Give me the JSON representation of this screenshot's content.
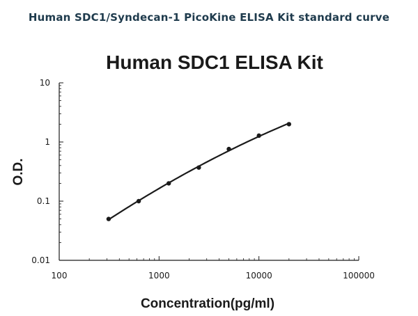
{
  "header": {
    "title": "Human SDC1/Syndecan-1 PicoKine ELISA Kit standard curve"
  },
  "chart_data": {
    "type": "scatter",
    "title": "Human SDC1 ELISA Kit",
    "xlabel": "Concentration(pg/ml)",
    "ylabel": "O.D.",
    "x_scale": "log",
    "y_scale": "log",
    "xlim": [
      100,
      100000
    ],
    "ylim": [
      0.01,
      10
    ],
    "x_ticks": [
      "100",
      "1000",
      "10000",
      "100000"
    ],
    "y_ticks": [
      "10",
      "1",
      "0.1",
      "0.01"
    ],
    "grid": false,
    "legend": "none",
    "series": [
      {
        "x": [
          312.5,
          625,
          1250,
          2500,
          5000,
          10000,
          20000
        ],
        "y": [
          0.05,
          0.1,
          0.2,
          0.37,
          0.76,
          1.28,
          2.0
        ]
      }
    ],
    "fit_line": true,
    "colors": {
      "marks": "#1a1a1a",
      "axis": "#1a1a1a"
    }
  }
}
